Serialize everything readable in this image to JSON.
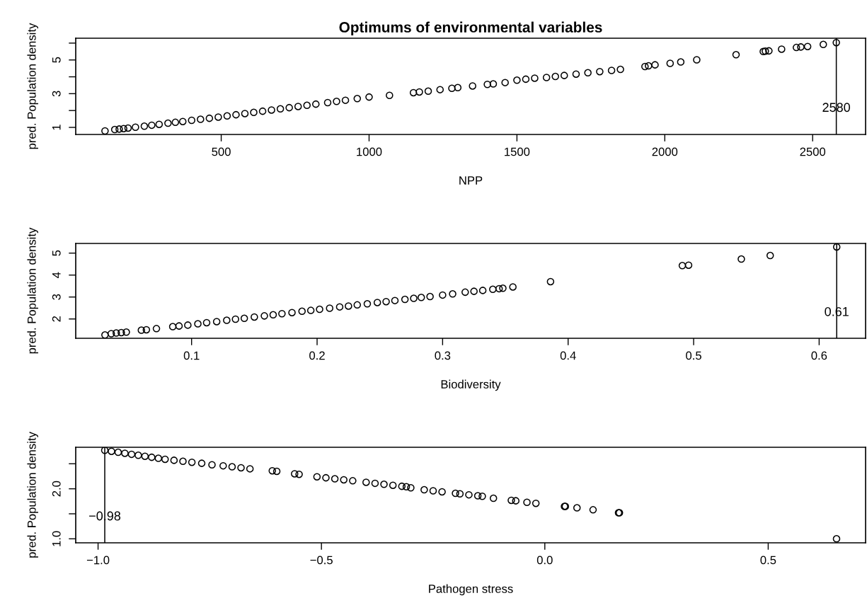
{
  "chart_data": [
    {
      "type": "scatter",
      "title": "Optimums of environmental variables",
      "xlabel": "NPP",
      "ylabel": "pred. Population density",
      "marker": "circle",
      "grid": false,
      "legend": false,
      "color": "#000000",
      "x": [
        107,
        140,
        155,
        170,
        185,
        210,
        240,
        265,
        290,
        320,
        345,
        370,
        400,
        430,
        460,
        490,
        520,
        550,
        580,
        610,
        640,
        670,
        700,
        730,
        760,
        790,
        820,
        860,
        890,
        920,
        960,
        1000,
        1069,
        1150,
        1170,
        1200,
        1240,
        1280,
        1300,
        1350,
        1400,
        1420,
        1460,
        1500,
        1530,
        1560,
        1600,
        1630,
        1660,
        1700,
        1740,
        1780,
        1820,
        1850,
        1933,
        1945,
        1967,
        2018,
        2054,
        2108,
        2241,
        2333,
        2340,
        2352,
        2395,
        2445,
        2460,
        2483,
        2536,
        2580
      ],
      "values": [
        0.79,
        0.87,
        0.9,
        0.93,
        0.96,
        1.01,
        1.07,
        1.13,
        1.18,
        1.25,
        1.3,
        1.35,
        1.42,
        1.48,
        1.54,
        1.61,
        1.68,
        1.75,
        1.82,
        1.89,
        1.96,
        2.03,
        2.1,
        2.17,
        2.24,
        2.31,
        2.38,
        2.47,
        2.54,
        2.61,
        2.71,
        2.8,
        2.9,
        3.06,
        3.1,
        3.15,
        3.24,
        3.32,
        3.36,
        3.46,
        3.55,
        3.58,
        3.66,
        3.8,
        3.86,
        3.92,
        3.96,
        4.02,
        4.08,
        4.16,
        4.24,
        4.31,
        4.38,
        4.44,
        4.61,
        4.65,
        4.71,
        4.8,
        4.88,
        5.01,
        5.31,
        5.5,
        5.52,
        5.54,
        5.64,
        5.74,
        5.77,
        5.8,
        5.92,
        6.03
      ],
      "xlim": [
        8,
        2679
      ],
      "ylim": [
        0.58,
        6.29
      ],
      "xticks": [
        500,
        1000,
        1500,
        2000,
        2500
      ],
      "yticks": [
        1,
        {
          "value": 2,
          "label": null
        },
        3,
        {
          "value": 4,
          "label": null
        },
        5,
        {
          "value": 6,
          "label": null
        }
      ],
      "ref_lines": [
        {
          "axis": "x",
          "value": 2580,
          "label": "2580",
          "color": "#000000"
        }
      ]
    },
    {
      "type": "scatter",
      "xlabel": "Biodiversity",
      "ylabel": "pred. Population density",
      "marker": "circle",
      "grid": false,
      "legend": false,
      "color": "#000000",
      "x": [
        0.031,
        0.036,
        0.04,
        0.044,
        0.048,
        0.06,
        0.064,
        0.072,
        0.085,
        0.09,
        0.097,
        0.105,
        0.112,
        0.12,
        0.128,
        0.135,
        0.142,
        0.15,
        0.158,
        0.165,
        0.172,
        0.18,
        0.188,
        0.195,
        0.202,
        0.21,
        0.218,
        0.225,
        0.232,
        0.24,
        0.248,
        0.255,
        0.262,
        0.27,
        0.277,
        0.283,
        0.29,
        0.3,
        0.308,
        0.318,
        0.325,
        0.332,
        0.34,
        0.345,
        0.348,
        0.356,
        0.386,
        0.491,
        0.496,
        0.538,
        0.561,
        0.614
      ],
      "values": [
        1.27,
        1.33,
        1.36,
        1.38,
        1.4,
        1.49,
        1.51,
        1.56,
        1.65,
        1.68,
        1.72,
        1.78,
        1.83,
        1.88,
        1.94,
        1.99,
        2.03,
        2.09,
        2.14,
        2.19,
        2.24,
        2.29,
        2.35,
        2.39,
        2.44,
        2.49,
        2.55,
        2.59,
        2.64,
        2.69,
        2.75,
        2.79,
        2.84,
        2.89,
        2.94,
        2.98,
        3.02,
        3.09,
        3.14,
        3.22,
        3.26,
        3.3,
        3.35,
        3.38,
        3.4,
        3.46,
        3.7,
        4.43,
        4.45,
        4.73,
        4.89,
        5.28
      ],
      "xlim": [
        0.0077,
        0.637
      ],
      "ylim": [
        1.12,
        5.44
      ],
      "xticks": [
        0.1,
        0.2,
        0.3,
        0.4,
        0.5,
        0.6
      ],
      "yticks": [
        2,
        3,
        4,
        5
      ],
      "ref_lines": [
        {
          "axis": "x",
          "value": 0.614,
          "label": "0.61",
          "color": "#000000"
        }
      ]
    },
    {
      "type": "scatter",
      "xlabel": "Pathogen stress",
      "ylabel": "pred. Population density",
      "marker": "circle",
      "grid": false,
      "legend": false,
      "color": "#000000",
      "x": [
        -0.985,
        -0.97,
        -0.955,
        -0.94,
        -0.925,
        -0.91,
        -0.895,
        -0.88,
        -0.865,
        -0.85,
        -0.83,
        -0.81,
        -0.79,
        -0.768,
        -0.745,
        -0.72,
        -0.7,
        -0.68,
        -0.66,
        -0.61,
        -0.6,
        -0.56,
        -0.55,
        -0.51,
        -0.49,
        -0.47,
        -0.45,
        -0.43,
        -0.4,
        -0.38,
        -0.36,
        -0.34,
        -0.32,
        -0.31,
        -0.3,
        -0.27,
        -0.25,
        -0.23,
        -0.2,
        -0.19,
        -0.17,
        -0.15,
        -0.14,
        -0.115,
        -0.075,
        -0.065,
        -0.04,
        -0.02,
        0.044,
        0.046,
        0.072,
        0.108,
        0.165,
        0.167,
        0.653
      ],
      "values": [
        2.77,
        2.75,
        2.73,
        2.71,
        2.69,
        2.67,
        2.65,
        2.63,
        2.61,
        2.59,
        2.57,
        2.55,
        2.53,
        2.51,
        2.48,
        2.46,
        2.44,
        2.42,
        2.4,
        2.36,
        2.35,
        2.3,
        2.29,
        2.24,
        2.22,
        2.2,
        2.18,
        2.16,
        2.13,
        2.11,
        2.09,
        2.07,
        2.05,
        2.04,
        2.02,
        1.98,
        1.96,
        1.94,
        1.91,
        1.9,
        1.88,
        1.86,
        1.85,
        1.81,
        1.77,
        1.76,
        1.73,
        1.71,
        1.65,
        1.65,
        1.62,
        1.58,
        1.52,
        1.52,
        1.0
      ],
      "xlim": [
        -1.05,
        0.718
      ],
      "ylim": [
        0.92,
        2.83
      ],
      "xticks": [
        {
          "value": -1.0,
          "label": "−1.0"
        },
        {
          "value": -0.5,
          "label": "−0.5"
        },
        {
          "value": 0.0,
          "label": "0.0"
        },
        0.5
      ],
      "yticks": [
        {
          "value": 1.0,
          "label": "1.0"
        },
        {
          "value": 1.5,
          "label": null
        },
        {
          "value": 2.0,
          "label": "2.0"
        },
        {
          "value": 2.5,
          "label": null
        }
      ],
      "ref_lines": [
        {
          "axis": "x",
          "value": -0.985,
          "label": "−0.98",
          "color": "#000000"
        }
      ]
    }
  ]
}
